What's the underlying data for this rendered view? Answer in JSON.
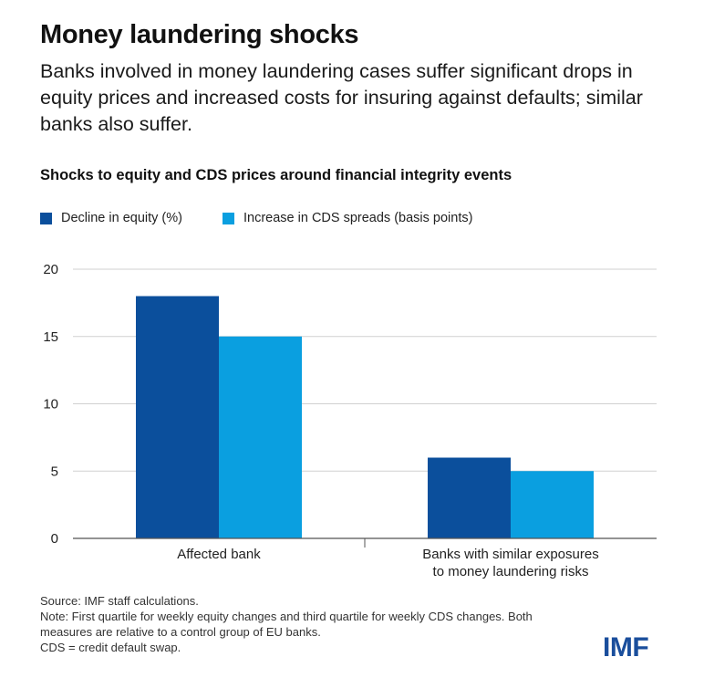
{
  "title": "Money laundering shocks",
  "subtitle": "Banks involved in money laundering cases suffer significant drops in equity prices and increased costs for insuring against defaults; similar banks also suffer.",
  "colors": {
    "series_equity": "#0b4f9c",
    "series_cds": "#0a9fe0",
    "grid": "#d0d0d0",
    "axis": "#555555",
    "logo": "#1a4e9c"
  },
  "chart_data": {
    "type": "bar",
    "title": "Shocks to equity and CDS prices around financial integrity events",
    "categories": [
      [
        "Affected bank"
      ],
      [
        "Banks with similar exposures",
        "to money laundering risks"
      ]
    ],
    "series": [
      {
        "name": "Decline in equity (%)",
        "values": [
          18,
          6
        ]
      },
      {
        "name": "Increase in CDS spreads (basis points)",
        "values": [
          15,
          5
        ]
      }
    ],
    "yticks": [
      "0",
      "5",
      "10",
      "15",
      "20"
    ],
    "ylim": [
      0,
      20
    ],
    "grid": true,
    "legend": "top-left",
    "xlabel": "",
    "ylabel": ""
  },
  "notes": {
    "source": "Source: IMF staff calculations.",
    "note": "Note: First quartile for weekly equity changes and third quartile for weekly CDS changes. Both measures are relative to a control group of EU banks.",
    "cds": "CDS = credit default swap."
  },
  "logo": {
    "text": "IMF"
  }
}
